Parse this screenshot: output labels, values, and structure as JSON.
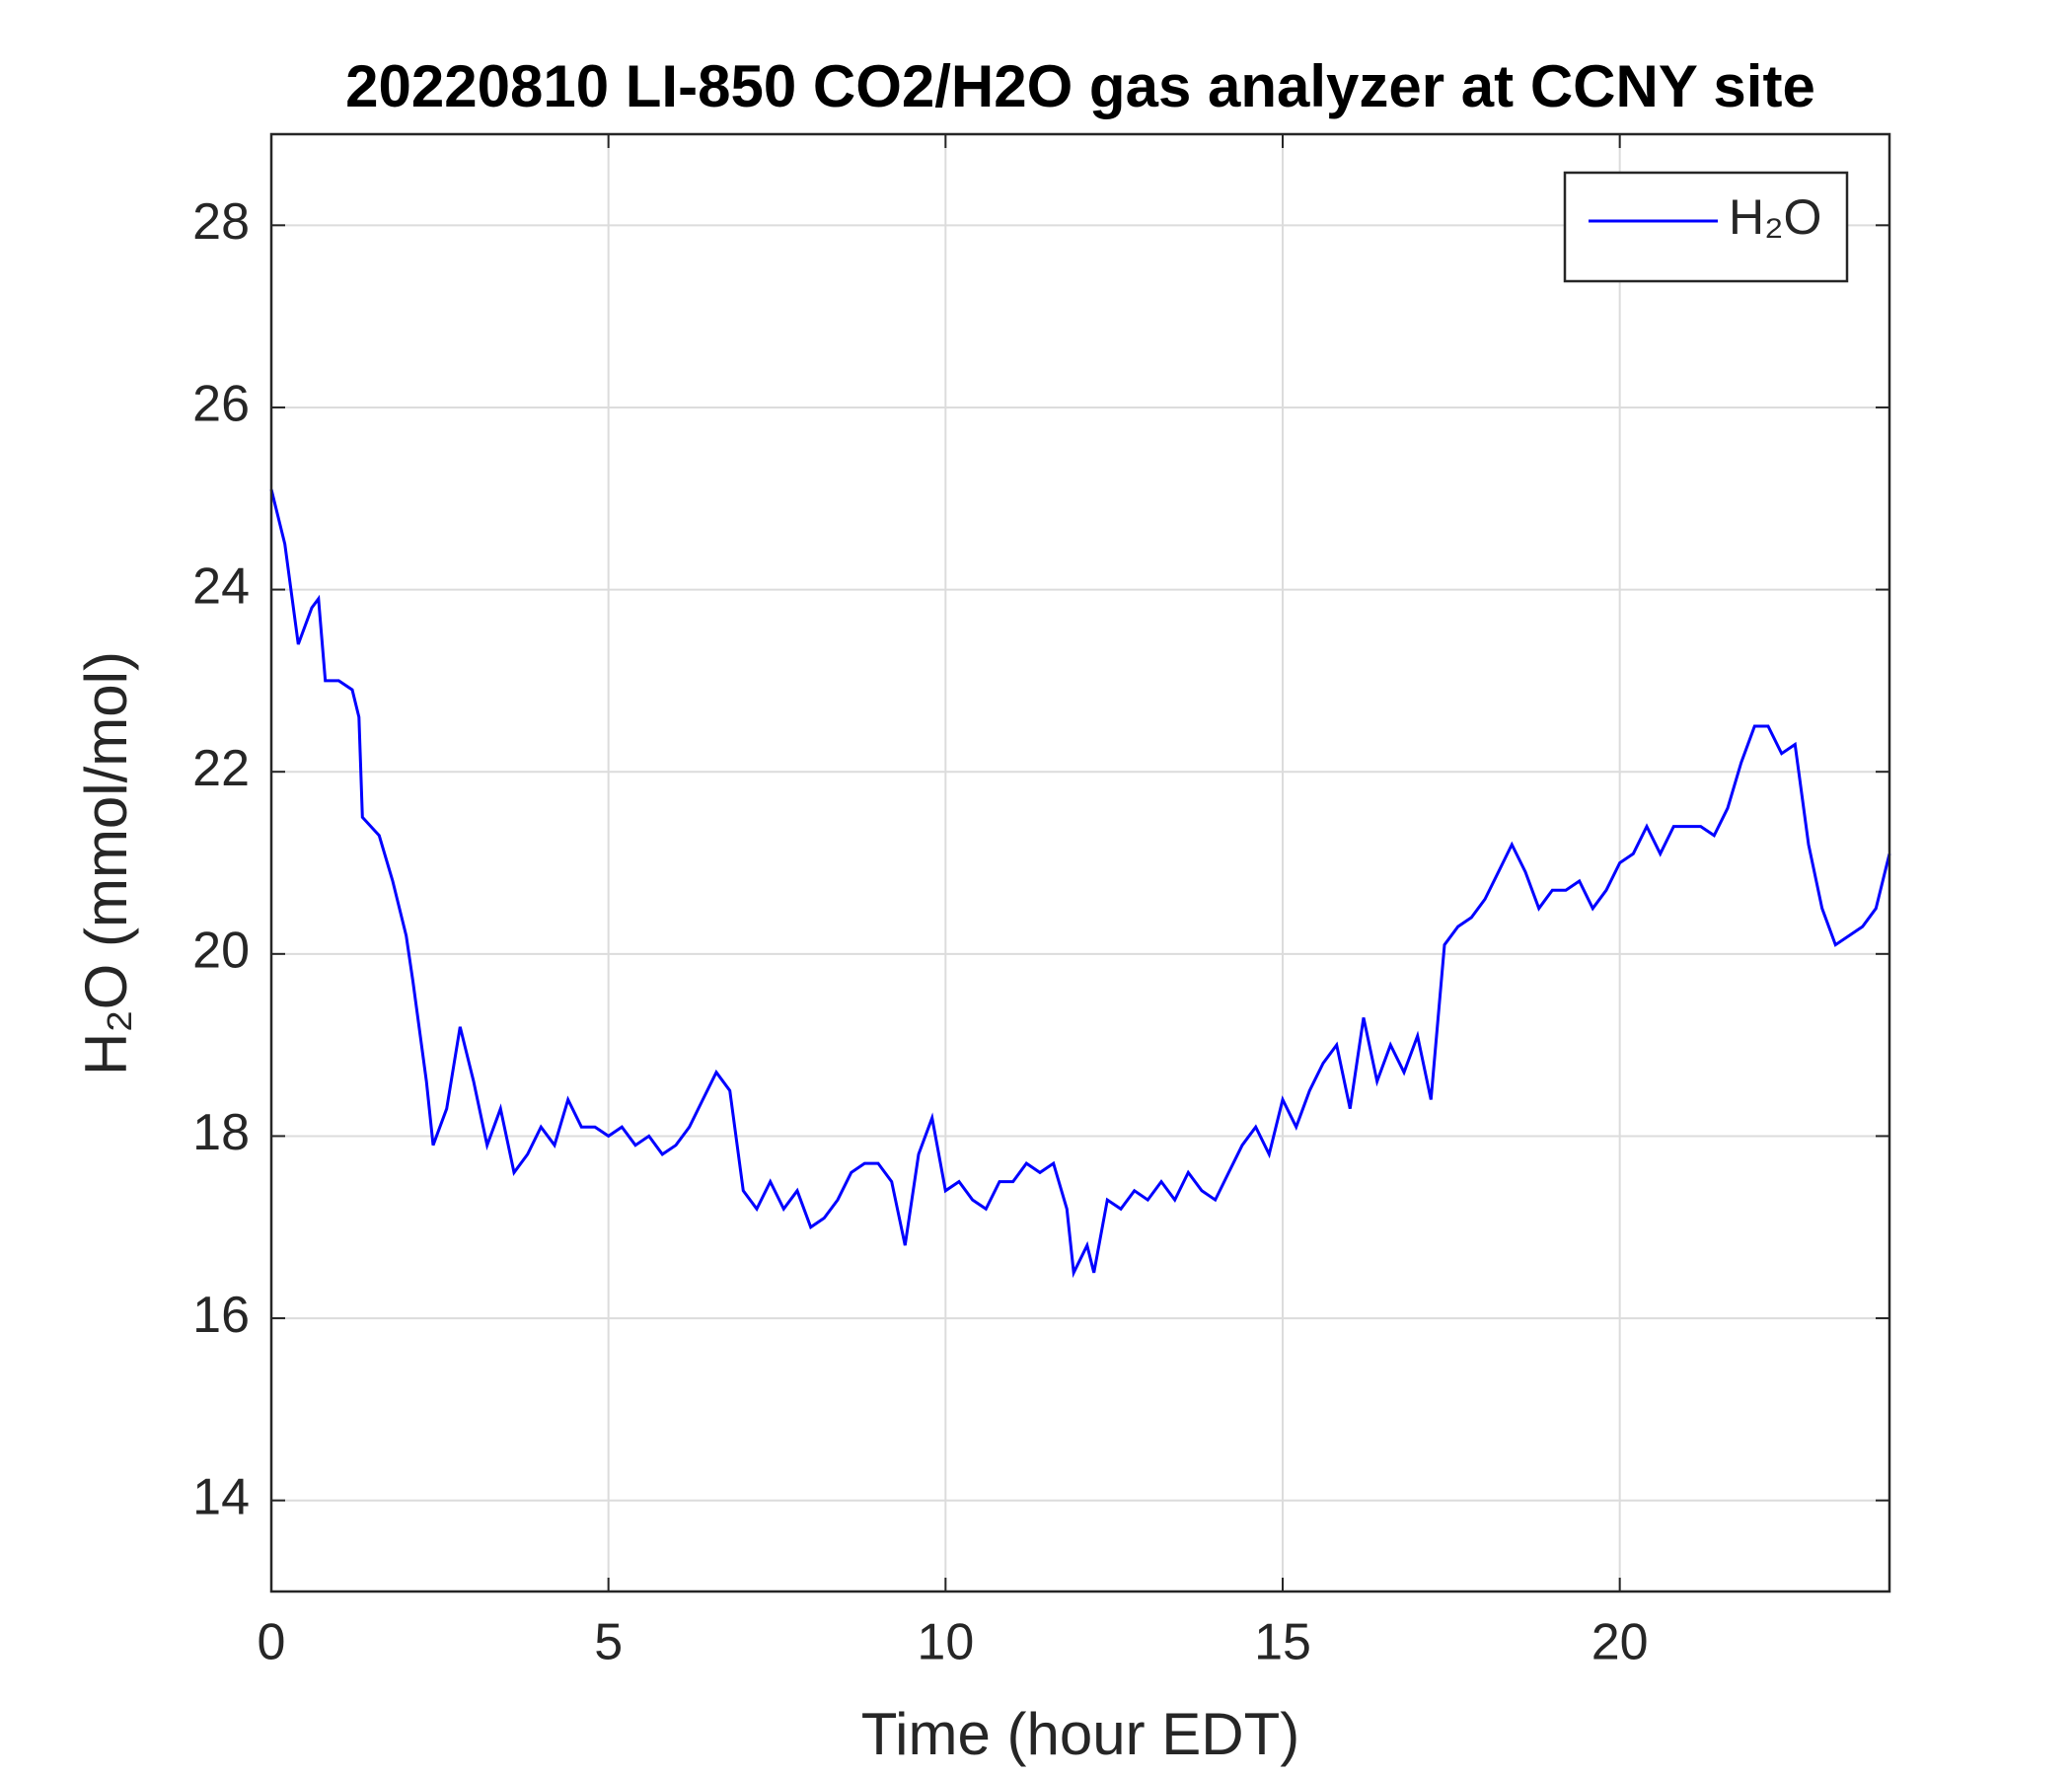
{
  "chart_data": {
    "type": "line",
    "title": "20220810 LI-850 CO2/H2O gas analyzer at CCNY site",
    "x_label": "Time (hour EDT)",
    "y_label": "H₂O (mmol/mol)",
    "xlim": [
      0,
      24
    ],
    "xticks": [
      0,
      5,
      10,
      15,
      20
    ],
    "ylim": [
      13,
      29
    ],
    "yticks": [
      14,
      16,
      18,
      20,
      22,
      24,
      26,
      28
    ],
    "grid": true,
    "legend": "upper right",
    "x": [
      0,
      0.2,
      0.4,
      0.6,
      0.7,
      0.8,
      1.0,
      1.2,
      1.3,
      1.35,
      1.6,
      1.8,
      2.0,
      2.1,
      2.3,
      2.4,
      2.6,
      2.8,
      3.0,
      3.2,
      3.4,
      3.6,
      3.8,
      4.0,
      4.2,
      4.4,
      4.6,
      4.8,
      5.0,
      5.2,
      5.4,
      5.6,
      5.8,
      6.0,
      6.2,
      6.4,
      6.6,
      6.8,
      7.0,
      7.2,
      7.4,
      7.6,
      7.8,
      8.0,
      8.2,
      8.4,
      8.6,
      8.8,
      9.0,
      9.2,
      9.4,
      9.6,
      9.8,
      10.0,
      10.2,
      10.4,
      10.6,
      10.8,
      11.0,
      11.2,
      11.4,
      11.6,
      11.8,
      11.9,
      12.1,
      12.2,
      12.4,
      12.6,
      12.8,
      13.0,
      13.2,
      13.4,
      13.6,
      13.8,
      14.0,
      14.2,
      14.4,
      14.6,
      14.8,
      15.0,
      15.2,
      15.4,
      15.6,
      15.8,
      16.0,
      16.2,
      16.4,
      16.6,
      16.8,
      17.0,
      17.2,
      17.4,
      17.6,
      17.8,
      18.0,
      18.2,
      18.4,
      18.6,
      18.8,
      19.0,
      19.2,
      19.4,
      19.6,
      19.8,
      20.0,
      20.2,
      20.4,
      20.6,
      20.8,
      21.0,
      21.2,
      21.4,
      21.6,
      21.8,
      22.0,
      22.2,
      22.4,
      22.6,
      22.8,
      23.0,
      23.2,
      23.4,
      23.6,
      23.8,
      24.0
    ],
    "series": [
      {
        "name": "H₂O",
        "color": "#0000ff",
        "values": [
          25.1,
          24.5,
          23.4,
          23.8,
          23.9,
          23.0,
          23.0,
          22.9,
          22.6,
          21.5,
          21.3,
          20.8,
          20.2,
          19.7,
          18.6,
          17.9,
          18.3,
          19.2,
          18.6,
          17.9,
          18.3,
          17.6,
          17.8,
          18.1,
          17.9,
          18.4,
          18.1,
          18.1,
          18.0,
          18.1,
          17.9,
          18.0,
          17.8,
          17.9,
          18.1,
          18.4,
          18.7,
          18.5,
          17.4,
          17.2,
          17.5,
          17.2,
          17.4,
          17.0,
          17.1,
          17.3,
          17.6,
          17.7,
          17.7,
          17.5,
          16.8,
          17.8,
          18.2,
          17.4,
          17.5,
          17.3,
          17.2,
          17.5,
          17.5,
          17.7,
          17.6,
          17.7,
          17.2,
          16.5,
          16.8,
          16.5,
          17.3,
          17.2,
          17.4,
          17.3,
          17.5,
          17.3,
          17.6,
          17.4,
          17.3,
          17.6,
          17.9,
          18.1,
          17.8,
          18.4,
          18.1,
          18.5,
          18.8,
          19.0,
          18.3,
          19.3,
          18.6,
          19.0,
          18.7,
          19.1,
          18.4,
          20.1,
          20.3,
          20.4,
          20.6,
          20.9,
          21.2,
          20.9,
          20.5,
          20.7,
          20.7,
          20.8,
          20.5,
          20.7,
          21.0,
          21.1,
          21.4,
          21.1,
          21.4,
          21.4,
          21.4,
          21.3,
          21.6,
          22.1,
          22.5,
          22.5,
          22.2,
          22.3,
          21.2,
          20.5,
          20.1,
          20.2,
          20.3,
          20.5,
          21.1
        ]
      }
    ]
  }
}
